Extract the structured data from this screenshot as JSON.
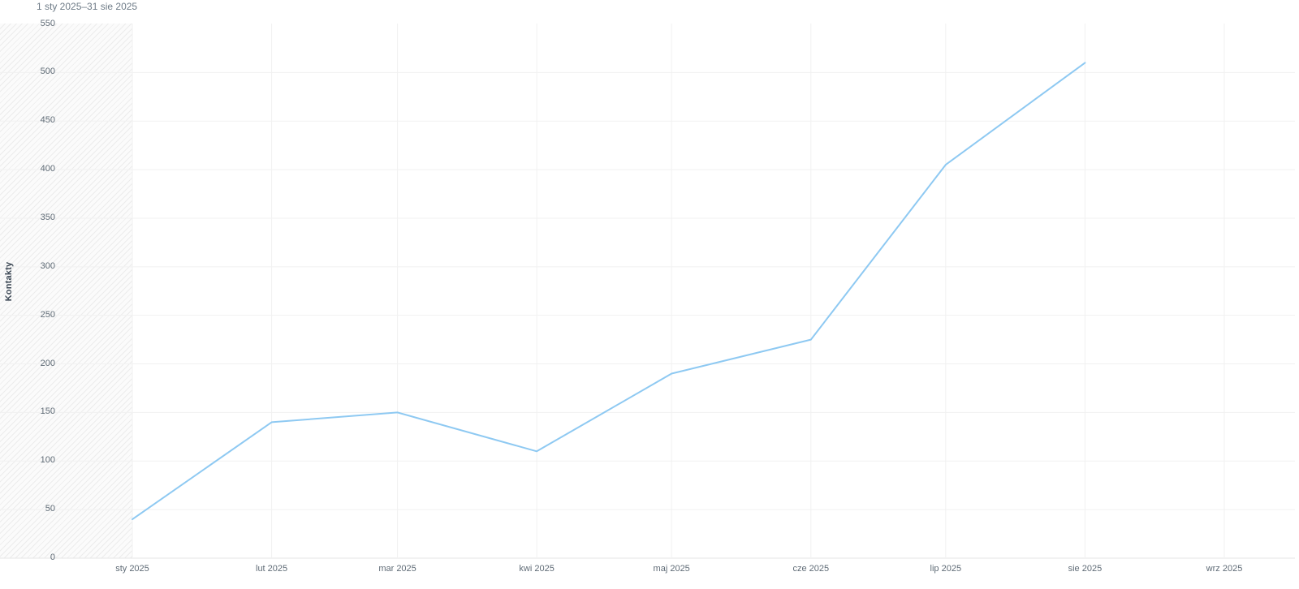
{
  "header": {
    "date_range": "1 sty 2025–31 sie 2025"
  },
  "chart_data": {
    "type": "line",
    "title": "1 sty 2025–31 sie 2025",
    "ylabel": "Kontakty",
    "xlabel": "",
    "categories": [
      "sty 2025",
      "lut 2025",
      "mar 2025",
      "kwi 2025",
      "maj 2025",
      "cze 2025",
      "lip 2025",
      "sie 2025",
      "wrz 2025"
    ],
    "x_day_offsets": [
      0,
      31,
      59,
      90,
      120,
      151,
      181,
      212,
      243
    ],
    "series": [
      {
        "name": "Kontakty",
        "values": [
          40,
          140,
          150,
          110,
          190,
          225,
          405,
          510
        ],
        "color": "#8ec9f2"
      }
    ],
    "ylim": [
      0,
      550
    ],
    "y_ticks": [
      0,
      50,
      100,
      150,
      200,
      250,
      300,
      350,
      400,
      450,
      500,
      550
    ],
    "grid": true,
    "legend": "none",
    "annotations": {
      "incomplete_period_hatch": "before sty 2025"
    }
  },
  "colors": {
    "line": "#8ec9f2",
    "grid": "#f1f1f1",
    "axis_baseline": "#e6e6e6",
    "tick_text": "#5f6b76",
    "header_text": "#6e7b87",
    "ylabel_text": "#3b4754",
    "hatch_stripe": "#ececec",
    "hatch_bg": "#fbfbfb"
  }
}
